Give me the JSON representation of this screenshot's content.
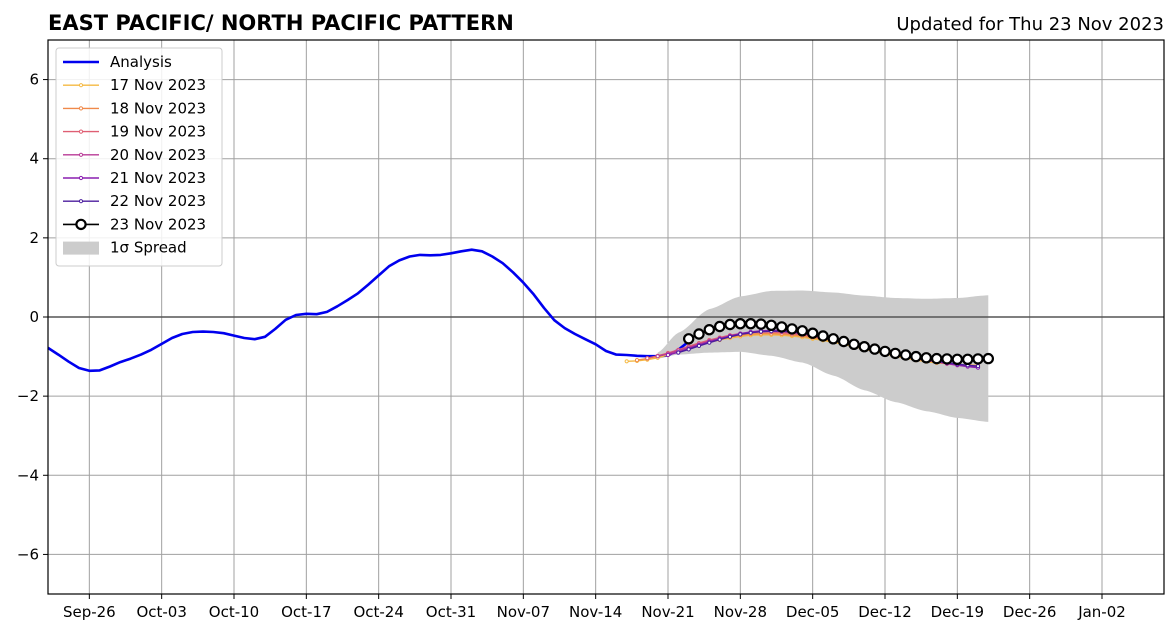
{
  "chart_data": {
    "type": "line",
    "title": "EAST PACIFIC/ NORTH PACIFIC PATTERN",
    "subtitle": "Updated for Thu 23 Nov 2023",
    "x_axis": {
      "type": "date",
      "range": [
        "2023-09-22",
        "2024-01-08"
      ],
      "tick_dates": [
        "2023-09-26",
        "2023-10-03",
        "2023-10-10",
        "2023-10-17",
        "2023-10-24",
        "2023-10-31",
        "2023-11-07",
        "2023-11-14",
        "2023-11-21",
        "2023-11-28",
        "2023-12-05",
        "2023-12-12",
        "2023-12-19",
        "2023-12-26",
        "2024-01-02"
      ],
      "tick_labels": [
        "Sep-26",
        "Oct-03",
        "Oct-10",
        "Oct-17",
        "Oct-24",
        "Oct-31",
        "Nov-07",
        "Nov-14",
        "Nov-21",
        "Nov-28",
        "Dec-05",
        "Dec-12",
        "Dec-19",
        "Dec-26",
        "Jan-02"
      ]
    },
    "y_axis": {
      "range": [
        -7,
        7
      ],
      "ticks": [
        6,
        4,
        2,
        0,
        -2,
        -4,
        -6
      ],
      "tick_labels": [
        "6",
        "4",
        "2",
        "0",
        "−2",
        "−4",
        "−6"
      ]
    },
    "grid": true,
    "zero_line": true,
    "legend_position": "top-left",
    "analysis": {
      "name": "Analysis",
      "color": "#0000ee",
      "x": [
        "2023-09-22",
        "2023-09-23",
        "2023-09-24",
        "2023-09-25",
        "2023-09-26",
        "2023-09-27",
        "2023-09-28",
        "2023-09-29",
        "2023-09-30",
        "2023-10-01",
        "2023-10-02",
        "2023-10-03",
        "2023-10-04",
        "2023-10-05",
        "2023-10-06",
        "2023-10-07",
        "2023-10-08",
        "2023-10-09",
        "2023-10-10",
        "2023-10-11",
        "2023-10-12",
        "2023-10-13",
        "2023-10-14",
        "2023-10-15",
        "2023-10-16",
        "2023-10-17",
        "2023-10-18",
        "2023-10-19",
        "2023-10-20",
        "2023-10-21",
        "2023-10-22",
        "2023-10-23",
        "2023-10-24",
        "2023-10-25",
        "2023-10-26",
        "2023-10-27",
        "2023-10-28",
        "2023-10-29",
        "2023-10-30",
        "2023-10-31",
        "2023-11-01",
        "2023-11-02",
        "2023-11-03",
        "2023-11-04",
        "2023-11-05",
        "2023-11-06",
        "2023-11-07",
        "2023-11-08",
        "2023-11-09",
        "2023-11-10",
        "2023-11-11",
        "2023-11-12",
        "2023-11-13",
        "2023-11-14",
        "2023-11-15",
        "2023-11-16",
        "2023-11-17",
        "2023-11-18",
        "2023-11-19",
        "2023-11-20",
        "2023-11-21",
        "2023-11-22",
        "2023-11-23"
      ],
      "y": [
        -0.78,
        -0.95,
        -1.13,
        -1.29,
        -1.36,
        -1.35,
        -1.25,
        -1.14,
        -1.05,
        -0.95,
        -0.83,
        -0.68,
        -0.53,
        -0.43,
        -0.38,
        -0.37,
        -0.38,
        -0.41,
        -0.47,
        -0.53,
        -0.56,
        -0.5,
        -0.3,
        -0.07,
        0.05,
        0.08,
        0.07,
        0.13,
        0.27,
        0.43,
        0.6,
        0.82,
        1.05,
        1.28,
        1.43,
        1.53,
        1.57,
        1.56,
        1.57,
        1.61,
        1.66,
        1.7,
        1.66,
        1.53,
        1.36,
        1.13,
        0.87,
        0.57,
        0.23,
        -0.08,
        -0.28,
        -0.43,
        -0.56,
        -0.69,
        -0.86,
        -0.95,
        -0.96,
        -0.98,
        -0.99,
        -0.99,
        -0.97,
        -0.83,
        -0.62
      ]
    },
    "forecasts": [
      {
        "name": "17 Nov 2023",
        "color": "#f5b942",
        "start": "2023-11-17",
        "y": [
          -1.12,
          -1.11,
          -1.08,
          -1.03,
          -0.96,
          -0.88,
          -0.79,
          -0.71,
          -0.64,
          -0.58,
          -0.53,
          -0.49,
          -0.46,
          -0.45,
          -0.45,
          -0.46,
          -0.48,
          -0.51,
          -0.55,
          -0.59,
          -0.64,
          -0.69,
          -0.75,
          -0.81,
          -0.87,
          -0.93,
          -0.99,
          -1.04,
          -1.09,
          -1.13,
          -1.16,
          -1.18,
          -1.2,
          -1.21,
          -1.22
        ]
      },
      {
        "name": "18 Nov 2023",
        "color": "#f0894a",
        "start": "2023-11-18",
        "y": [
          -1.09,
          -1.05,
          -0.99,
          -0.92,
          -0.84,
          -0.76,
          -0.68,
          -0.61,
          -0.55,
          -0.5,
          -0.46,
          -0.43,
          -0.42,
          -0.42,
          -0.43,
          -0.45,
          -0.48,
          -0.52,
          -0.56,
          -0.61,
          -0.66,
          -0.72,
          -0.78,
          -0.84,
          -0.9,
          -0.96,
          -1.01,
          -1.06,
          -1.1,
          -1.14,
          -1.17,
          -1.2,
          -1.22,
          -1.23
        ]
      },
      {
        "name": "19 Nov 2023",
        "color": "#df5f73",
        "start": "2023-11-19",
        "y": [
          -1.04,
          -0.98,
          -0.91,
          -0.83,
          -0.74,
          -0.66,
          -0.58,
          -0.52,
          -0.46,
          -0.42,
          -0.39,
          -0.38,
          -0.38,
          -0.39,
          -0.42,
          -0.45,
          -0.49,
          -0.54,
          -0.59,
          -0.65,
          -0.71,
          -0.77,
          -0.83,
          -0.89,
          -0.95,
          -1.01,
          -1.06,
          -1.1,
          -1.14,
          -1.18,
          -1.21,
          -1.23,
          -1.25
        ]
      },
      {
        "name": "20 Nov 2023",
        "color": "#b83a96",
        "start": "2023-11-20",
        "y": [
          -0.99,
          -0.93,
          -0.85,
          -0.77,
          -0.69,
          -0.61,
          -0.54,
          -0.48,
          -0.43,
          -0.39,
          -0.37,
          -0.36,
          -0.37,
          -0.39,
          -0.42,
          -0.46,
          -0.51,
          -0.56,
          -0.62,
          -0.68,
          -0.74,
          -0.8,
          -0.86,
          -0.92,
          -0.98,
          -1.04,
          -1.09,
          -1.14,
          -1.18,
          -1.22,
          -1.25,
          -1.27
        ]
      },
      {
        "name": "21 Nov 2023",
        "color": "#8a1fb0",
        "start": "2023-11-21",
        "y": [
          -0.96,
          -0.89,
          -0.8,
          -0.71,
          -0.63,
          -0.55,
          -0.48,
          -0.42,
          -0.38,
          -0.35,
          -0.34,
          -0.34,
          -0.36,
          -0.39,
          -0.43,
          -0.48,
          -0.53,
          -0.59,
          -0.65,
          -0.71,
          -0.77,
          -0.84,
          -0.9,
          -0.96,
          -1.02,
          -1.07,
          -1.12,
          -1.17,
          -1.21,
          -1.25,
          -1.28
        ]
      },
      {
        "name": "22 Nov 2023",
        "color": "#4b1d9e",
        "start": "2023-11-22",
        "y": [
          -0.9,
          -0.82,
          -0.73,
          -0.65,
          -0.57,
          -0.5,
          -0.44,
          -0.4,
          -0.37,
          -0.36,
          -0.36,
          -0.38,
          -0.41,
          -0.45,
          -0.5,
          -0.55,
          -0.61,
          -0.67,
          -0.73,
          -0.79,
          -0.85,
          -0.91,
          -0.96,
          -1.02,
          -1.07,
          -1.11,
          -1.15,
          -1.19,
          -1.22,
          -1.24
        ]
      },
      {
        "name": "23 Nov 2023",
        "color": "#000000",
        "start": "2023-11-23",
        "marker": "open-circle",
        "y": [
          -0.55,
          -0.43,
          -0.32,
          -0.24,
          -0.19,
          -0.17,
          -0.17,
          -0.18,
          -0.21,
          -0.25,
          -0.3,
          -0.35,
          -0.41,
          -0.48,
          -0.55,
          -0.62,
          -0.69,
          -0.75,
          -0.81,
          -0.87,
          -0.92,
          -0.96,
          -1.0,
          -1.03,
          -1.05,
          -1.06,
          -1.07,
          -1.07,
          -1.06,
          -1.05
        ]
      }
    ],
    "spread": {
      "name": "1σ Spread",
      "color": "#cccccc",
      "x": [
        "2023-11-20",
        "2023-11-22",
        "2023-11-25",
        "2023-11-28",
        "2023-12-01",
        "2023-12-04",
        "2023-12-07",
        "2023-12-10",
        "2023-12-13",
        "2023-12-16",
        "2023-12-19",
        "2023-12-22"
      ],
      "upper": [
        -0.9,
        -0.4,
        0.2,
        0.52,
        0.66,
        0.67,
        0.62,
        0.54,
        0.48,
        0.46,
        0.48,
        0.55
      ],
      "lower": [
        -1.05,
        -0.95,
        -0.9,
        -0.88,
        -0.98,
        -1.15,
        -1.48,
        -1.85,
        -2.15,
        -2.38,
        -2.55,
        -2.65
      ]
    }
  }
}
